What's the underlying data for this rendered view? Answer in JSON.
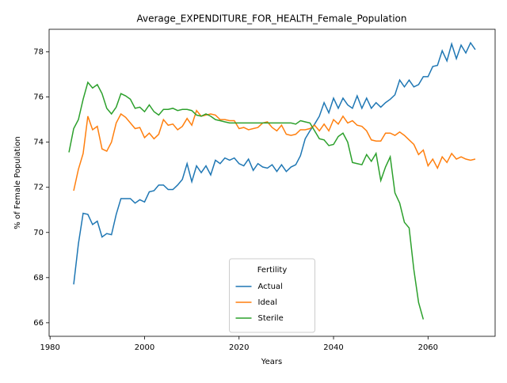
{
  "chart_data": {
    "type": "line",
    "title": "Average_EXPENDITURE_FOR_HEALTH_Female_Population",
    "xlabel": "Years",
    "ylabel": "% of Female Population",
    "legend_title": "Fertility",
    "legend_loc": "lower center",
    "x": [
      1984,
      1985,
      1986,
      1987,
      1988,
      1989,
      1990,
      1991,
      1992,
      1993,
      1994,
      1995,
      1996,
      1997,
      1998,
      1999,
      2000,
      2001,
      2002,
      2003,
      2004,
      2005,
      2006,
      2007,
      2008,
      2009,
      2010,
      2011,
      2012,
      2013,
      2014,
      2015,
      2016,
      2017,
      2018,
      2019,
      2020,
      2021,
      2022,
      2023,
      2024,
      2025,
      2026,
      2027,
      2028,
      2029,
      2030,
      2031,
      2032,
      2033,
      2034,
      2035,
      2036,
      2037,
      2038,
      2039,
      2040,
      2041,
      2042,
      2043,
      2044,
      2045,
      2046,
      2047,
      2048,
      2049,
      2050,
      2051,
      2052,
      2053,
      2054,
      2055,
      2056,
      2057,
      2058,
      2059,
      2060,
      2061,
      2062,
      2063,
      2064,
      2065,
      2066,
      2067,
      2068,
      2069,
      2070
    ],
    "series": [
      {
        "name": "Actual",
        "color": "#1f77b4",
        "values": [
          null,
          67.7,
          69.5,
          70.85,
          70.8,
          70.35,
          70.5,
          69.8,
          69.95,
          69.9,
          70.8,
          71.5,
          71.5,
          71.5,
          71.3,
          71.45,
          71.35,
          71.8,
          71.85,
          72.1,
          72.1,
          71.9,
          71.9,
          72.1,
          72.35,
          73.05,
          72.25,
          72.95,
          72.65,
          72.95,
          72.55,
          73.2,
          73.05,
          73.3,
          73.2,
          73.3,
          73.05,
          72.95,
          73.25,
          72.75,
          73.05,
          72.9,
          72.85,
          73.0,
          72.7,
          73.0,
          72.7,
          72.9,
          73.0,
          73.4,
          74.15,
          74.5,
          74.8,
          75.15,
          75.75,
          75.3,
          75.95,
          75.5,
          75.95,
          75.65,
          75.5,
          76.05,
          75.5,
          75.95,
          75.5,
          75.75,
          75.55,
          75.75,
          75.9,
          76.1,
          76.75,
          76.45,
          76.75,
          76.45,
          76.55,
          76.9,
          76.9,
          77.35,
          77.4,
          78.05,
          77.6,
          78.35,
          77.7,
          78.3,
          77.95,
          78.4,
          78.1
        ]
      },
      {
        "name": "Ideal",
        "color": "#ff7f0e",
        "values": [
          null,
          71.85,
          72.8,
          73.5,
          75.15,
          74.55,
          74.7,
          73.7,
          73.6,
          74.0,
          74.85,
          75.25,
          75.1,
          74.85,
          74.6,
          74.65,
          74.2,
          74.4,
          74.15,
          74.35,
          75.0,
          74.75,
          74.8,
          74.55,
          74.7,
          75.05,
          74.75,
          75.4,
          75.15,
          75.2,
          75.25,
          75.2,
          75.0,
          75.0,
          74.95,
          74.95,
          74.6,
          74.65,
          74.55,
          74.6,
          74.65,
          74.85,
          74.9,
          74.65,
          74.5,
          74.75,
          74.35,
          74.3,
          74.35,
          74.55,
          74.55,
          74.6,
          74.75,
          74.5,
          74.8,
          74.5,
          75.0,
          74.8,
          75.15,
          74.85,
          74.95,
          74.75,
          74.7,
          74.5,
          74.1,
          74.05,
          74.05,
          74.4,
          74.4,
          74.3,
          74.45,
          74.3,
          74.1,
          73.9,
          73.45,
          73.65,
          72.95,
          73.25,
          72.85,
          73.35,
          73.1,
          73.5,
          73.25,
          73.35,
          73.25,
          73.2,
          73.25
        ]
      },
      {
        "name": "Sterile",
        "color": "#2ca02c",
        "values": [
          73.55,
          74.6,
          75.0,
          75.9,
          76.65,
          76.4,
          76.55,
          76.15,
          75.5,
          75.25,
          75.55,
          76.15,
          76.05,
          75.9,
          75.5,
          75.55,
          75.35,
          75.65,
          75.35,
          75.2,
          75.45,
          75.45,
          75.5,
          75.4,
          75.45,
          75.45,
          75.4,
          75.2,
          75.15,
          75.25,
          75.15,
          75.0,
          74.95,
          74.9,
          74.85,
          74.85,
          74.85,
          74.85,
          74.85,
          74.85,
          74.85,
          74.85,
          74.85,
          74.85,
          74.85,
          74.85,
          74.85,
          74.85,
          74.8,
          74.95,
          74.9,
          74.85,
          74.5,
          74.15,
          74.1,
          73.85,
          73.9,
          74.25,
          74.4,
          74.0,
          73.1,
          73.05,
          73.0,
          73.45,
          73.15,
          73.5,
          72.3,
          72.9,
          73.35,
          71.75,
          71.3,
          70.45,
          70.2,
          68.35,
          66.9,
          66.15,
          null,
          null,
          null,
          null,
          null,
          null,
          null,
          null,
          null,
          null,
          null
        ]
      }
    ],
    "xlim": [
      1979.8,
      2074.2
    ],
    "ylim": [
      65.4,
      79.0
    ],
    "xticks": [
      1980,
      2000,
      2020,
      2040,
      2060
    ],
    "yticks": [
      66,
      68,
      70,
      72,
      74,
      76,
      78
    ]
  }
}
